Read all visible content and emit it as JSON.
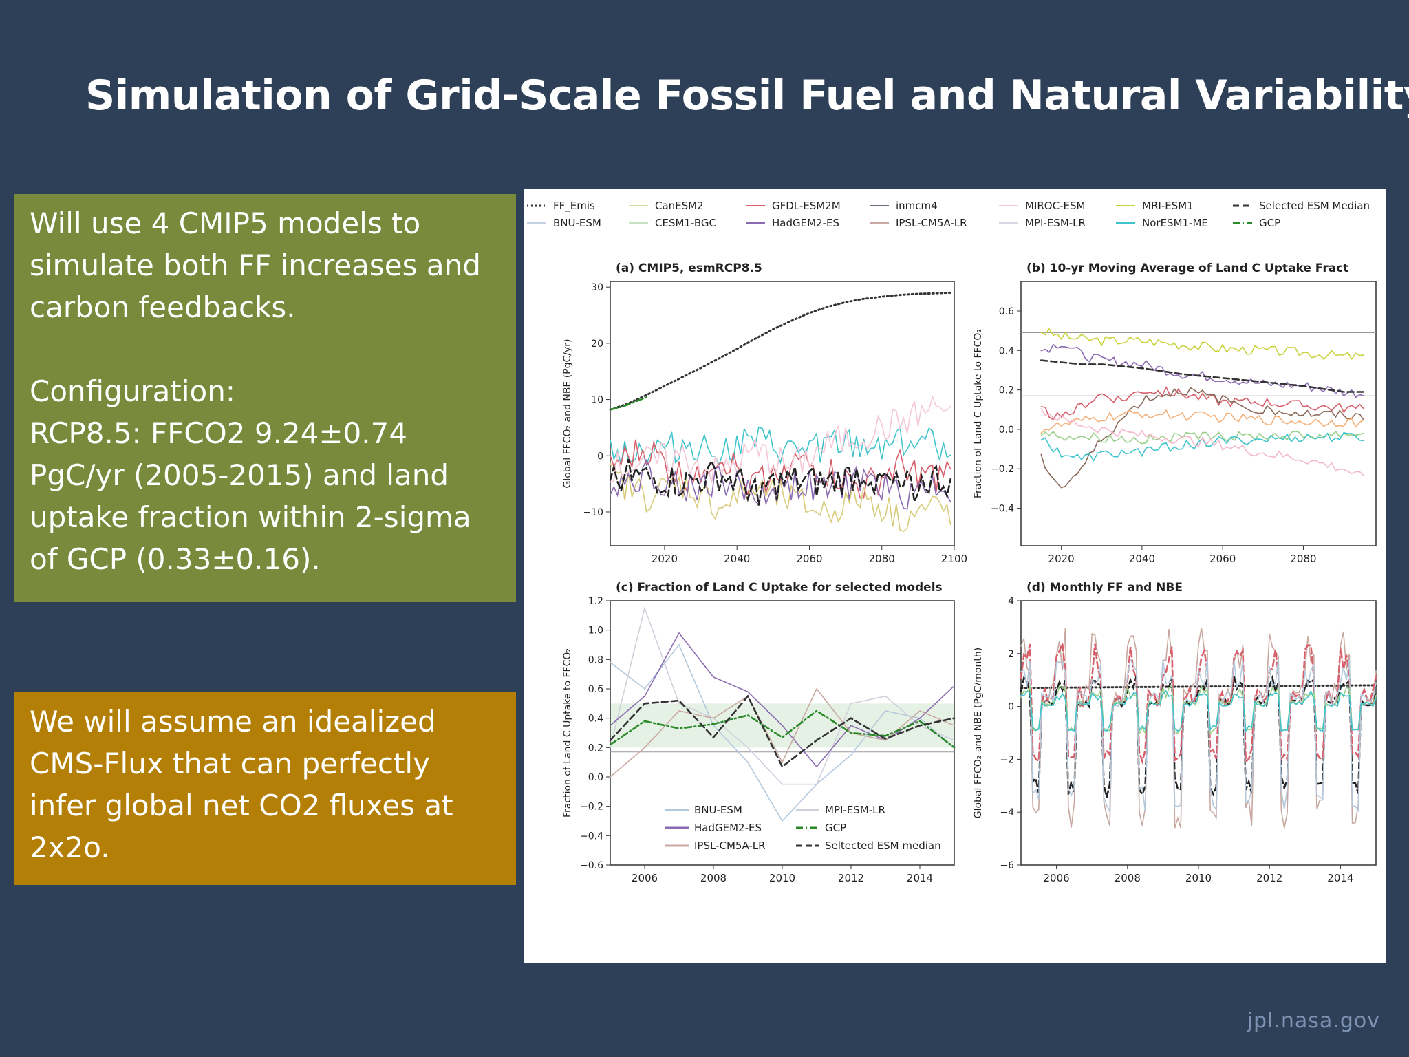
{
  "slide": {
    "title": "Simulation of Grid-Scale Fossil Fuel and Natural Variability",
    "footer": "jpl.nasa.gov"
  },
  "left_box_1": {
    "lines": [
      "Will use 4 CMIP5 models to",
      "simulate both FF increases and",
      "carbon feedbacks.",
      "Configuration:",
      "RCP8.5: FFCO2 9.24±0.74",
      "PgC/yr  (2005-2015) and land",
      "uptake fraction within 2-sigma",
      "of GCP (0.33±0.16)."
    ],
    "color": "#7a8a3c"
  },
  "left_box_2": {
    "lines": [
      "We will assume an idealized",
      "CMS-Flux that can perfectly",
      "infer global net CO2 fluxes at",
      "2x2o."
    ],
    "color": "#b47f06"
  },
  "top_legend": [
    {
      "label": "FF_Emis",
      "color": "#333333",
      "style": "dotted"
    },
    {
      "label": "CanESM2",
      "color": "#d4dca0",
      "style": "solid"
    },
    {
      "label": "GFDL-ESM2M",
      "color": "#d65f6a",
      "style": "solid"
    },
    {
      "label": "inmcm4",
      "color": "#6a6a7a",
      "style": "solid"
    },
    {
      "label": "MIROC-ESM",
      "color": "#f4c8d6",
      "style": "solid"
    },
    {
      "label": "MRI-ESM1",
      "color": "#c8d23c",
      "style": "solid"
    },
    {
      "label": "Selected ESM Median",
      "color": "#333333",
      "style": "dashed"
    },
    {
      "label": "BNU-ESM",
      "color": "#c2d2e4",
      "style": "solid"
    },
    {
      "label": "CESM1-BGC",
      "color": "#c8e0c4",
      "style": "solid"
    },
    {
      "label": "HadGEM2-ES",
      "color": "#8a6ab0",
      "style": "solid"
    },
    {
      "label": "IPSL-CM5A-LR",
      "color": "#c8a8a0",
      "style": "solid"
    },
    {
      "label": "MPI-ESM-LR",
      "color": "#d8d8e4",
      "style": "solid"
    },
    {
      "label": "NorESM1-ME",
      "color": "#40c4cc",
      "style": "solid"
    },
    {
      "label": "GCP",
      "color": "#2a8a2a",
      "style": "dashdot"
    }
  ],
  "chart_data": [
    {
      "id": "a",
      "type": "line",
      "title": "(a) CMIP5, esmRCP8.5",
      "xlabel": "",
      "ylabel": "Global FFCO₂ and NBE (PgC/yr)",
      "xlim": [
        2005,
        2100
      ],
      "ylim": [
        -16,
        31
      ],
      "xticks": [
        2020,
        2040,
        2060,
        2080,
        2100
      ],
      "yticks": [
        -10,
        0,
        10,
        20,
        30
      ],
      "series": [
        {
          "name": "FF_Emis",
          "color": "#333333",
          "style": "dotted",
          "x": [
            2005,
            2010,
            2015,
            2020,
            2025,
            2030,
            2035,
            2040,
            2045,
            2050,
            2055,
            2060,
            2065,
            2070,
            2075,
            2080,
            2085,
            2090,
            2095,
            2099
          ],
          "y": [
            8.2,
            9.3,
            10.8,
            12.4,
            14.0,
            15.6,
            17.3,
            19.0,
            20.8,
            22.5,
            24.0,
            25.4,
            26.5,
            27.3,
            27.9,
            28.3,
            28.6,
            28.8,
            28.9,
            29.0
          ]
        },
        {
          "name": "GCP",
          "color": "#2a8a2a",
          "style": "dashdot",
          "x": [
            2005,
            2007,
            2009,
            2011,
            2013,
            2015
          ],
          "y": [
            8.2,
            8.5,
            8.9,
            9.4,
            9.9,
            10.4
          ]
        },
        {
          "name": "NorESM1-ME",
          "color": "#40c4cc",
          "style": "solid",
          "x": [
            2005,
            2015,
            2025,
            2035,
            2045,
            2055,
            2065,
            2075,
            2085,
            2095,
            2099
          ],
          "y": [
            1.5,
            0.5,
            2.0,
            1.0,
            2.5,
            0.5,
            2.0,
            1.5,
            3.0,
            2.0,
            2.5
          ]
        },
        {
          "name": "GFDL-ESM2M",
          "color": "#d65f6a",
          "style": "solid",
          "x": [
            2005,
            2015,
            2025,
            2035,
            2045,
            2055,
            2065,
            2075,
            2085,
            2095,
            2099
          ],
          "y": [
            -2.0,
            1.0,
            -4.0,
            0.0,
            -5.0,
            -1.0,
            -3.0,
            -6.0,
            -2.0,
            -4.0,
            -3.0
          ]
        },
        {
          "name": "CanESM2",
          "color": "#d8cc7a",
          "style": "solid",
          "x": [
            2005,
            2015,
            2025,
            2035,
            2045,
            2055,
            2065,
            2075,
            2085,
            2095,
            2099
          ],
          "y": [
            -4.0,
            -7.0,
            -5.0,
            -9.0,
            -6.0,
            -8.0,
            -10.0,
            -7.0,
            -11.0,
            -9.0,
            -10.0
          ]
        },
        {
          "name": "MIROC-ESM",
          "color": "#f4c8d6",
          "style": "solid",
          "x": [
            2005,
            2015,
            2025,
            2035,
            2045,
            2055,
            2065,
            2075,
            2085,
            2095,
            2099
          ],
          "y": [
            -2.0,
            -1.0,
            0.0,
            -3.0,
            1.0,
            -2.0,
            2.0,
            4.0,
            6.0,
            9.0,
            8.0
          ]
        },
        {
          "name": "HadGEM2-ES",
          "color": "#8a6ab0",
          "style": "solid",
          "x": [
            2005,
            2015,
            2025,
            2035,
            2045,
            2055,
            2065,
            2075,
            2085,
            2095,
            2099
          ],
          "y": [
            -5.0,
            -3.0,
            -6.0,
            -4.0,
            -7.0,
            -5.0,
            -6.0,
            -4.0,
            -7.0,
            -5.0,
            -6.0
          ]
        },
        {
          "name": "Selected ESM Median",
          "color": "#222222",
          "style": "dashed",
          "x": [
            2005,
            2015,
            2025,
            2035,
            2045,
            2055,
            2065,
            2075,
            2085,
            2095,
            2099
          ],
          "y": [
            -3.0,
            -4.0,
            -5.0,
            -3.5,
            -6.0,
            -4.5,
            -5.0,
            -3.0,
            -6.0,
            -4.0,
            -5.0
          ]
        }
      ]
    },
    {
      "id": "b",
      "type": "line",
      "title": "(b) 10-yr Moving Average of Land C Uptake Fract",
      "xlabel": "",
      "ylabel": "Fraction of Land C Uptake to FFCO₂",
      "xlim": [
        2010,
        2098
      ],
      "ylim": [
        -0.59,
        0.75
      ],
      "xticks": [
        2020,
        2040,
        2060,
        2080
      ],
      "yticks": [
        -0.4,
        -0.2,
        0.0,
        0.2,
        0.4,
        0.6
      ],
      "hlines": [
        0.49,
        0.17
      ],
      "series": [
        {
          "name": "MRI-ESM1",
          "color": "#c8d23c",
          "style": "solid",
          "x": [
            2015,
            2020,
            2025,
            2030,
            2040,
            2050,
            2060,
            2070,
            2080,
            2090,
            2095
          ],
          "y": [
            0.5,
            0.47,
            0.46,
            0.45,
            0.45,
            0.43,
            0.41,
            0.4,
            0.39,
            0.37,
            0.37
          ]
        },
        {
          "name": "HadGEM2-ES",
          "color": "#8a6ab0",
          "style": "solid",
          "x": [
            2015,
            2020,
            2025,
            2030,
            2040,
            2050,
            2060,
            2070,
            2080,
            2090,
            2095
          ],
          "y": [
            0.4,
            0.44,
            0.38,
            0.35,
            0.33,
            0.28,
            0.26,
            0.23,
            0.22,
            0.19,
            0.18
          ]
        },
        {
          "name": "Selected ESM Median",
          "color": "#333333",
          "style": "dashed",
          "x": [
            2015,
            2020,
            2025,
            2030,
            2040,
            2050,
            2060,
            2070,
            2080,
            2090,
            2095
          ],
          "y": [
            0.35,
            0.34,
            0.33,
            0.33,
            0.31,
            0.28,
            0.26,
            0.24,
            0.22,
            0.19,
            0.19
          ]
        },
        {
          "name": "GFDL-ESM2M",
          "color": "#d65f6a",
          "style": "solid",
          "x": [
            2015,
            2020,
            2025,
            2030,
            2035,
            2040,
            2050,
            2060,
            2070,
            2080,
            2090,
            2095
          ],
          "y": [
            0.1,
            0.05,
            0.12,
            0.18,
            0.15,
            0.2,
            0.18,
            0.14,
            0.14,
            0.12,
            0.11,
            0.1
          ]
        },
        {
          "name": "IPSL-CM5A-LR",
          "color": "#8a6a5a",
          "style": "solid",
          "x": [
            2015,
            2020,
            2025,
            2030,
            2040,
            2050,
            2060,
            2070,
            2080,
            2090,
            2095
          ],
          "y": [
            -0.15,
            -0.3,
            -0.2,
            -0.05,
            0.15,
            0.2,
            0.15,
            0.1,
            0.08,
            0.07,
            0.06
          ]
        },
        {
          "name": "CanESM2",
          "color": "#f4b07a",
          "style": "solid",
          "x": [
            2015,
            2020,
            2030,
            2040,
            2050,
            2060,
            2070,
            2080,
            2090,
            2095
          ],
          "y": [
            0.0,
            0.02,
            0.06,
            0.08,
            0.07,
            0.06,
            0.05,
            0.04,
            0.04,
            0.03
          ]
        },
        {
          "name": "CESM1-BGC",
          "color": "#9ad08a",
          "style": "solid",
          "x": [
            2015,
            2020,
            2030,
            2040,
            2050,
            2060,
            2070,
            2080,
            2090,
            2095
          ],
          "y": [
            -0.02,
            -0.03,
            -0.04,
            -0.05,
            -0.04,
            -0.04,
            -0.03,
            -0.03,
            -0.02,
            -0.02
          ]
        },
        {
          "name": "NorESM1-ME",
          "color": "#40c4cc",
          "style": "solid",
          "x": [
            2015,
            2020,
            2025,
            2030,
            2040,
            2050,
            2060,
            2070,
            2080,
            2090,
            2095
          ],
          "y": [
            -0.05,
            -0.12,
            -0.15,
            -0.13,
            -0.11,
            -0.08,
            -0.06,
            -0.05,
            -0.04,
            -0.04,
            -0.04
          ]
        },
        {
          "name": "MIROC-ESM",
          "color": "#f4b8cc",
          "style": "solid",
          "x": [
            2015,
            2020,
            2030,
            2040,
            2050,
            2060,
            2070,
            2080,
            2090,
            2095
          ],
          "y": [
            0.1,
            0.05,
            0.0,
            -0.03,
            -0.05,
            -0.08,
            -0.12,
            -0.15,
            -0.2,
            -0.25
          ]
        }
      ]
    },
    {
      "id": "c",
      "type": "line",
      "title": "(c) Fraction of Land C Uptake for selected models",
      "xlabel": "",
      "ylabel": "Fraction of Land C Uptake to FFCO₂",
      "xlim": [
        2005,
        2015
      ],
      "ylim": [
        -0.6,
        1.2
      ],
      "xticks": [
        2006,
        2008,
        2010,
        2012,
        2014
      ],
      "yticks": [
        -0.6,
        -0.4,
        -0.2,
        0.0,
        0.2,
        0.4,
        0.6,
        0.8,
        1.0,
        1.2
      ],
      "hlines": [
        0.49,
        0.17
      ],
      "legend": [
        "BNU-ESM",
        "MPI-ESM-LR",
        "HadGEM2-ES",
        "GCP",
        "IPSL-CM5A-LR",
        "Seltected ESM median"
      ],
      "series": [
        {
          "name": "BNU-ESM",
          "color": "#b4c8dc",
          "style": "solid",
          "x": [
            2005,
            2006,
            2007,
            2008,
            2009,
            2010,
            2011,
            2012,
            2013,
            2014,
            2015
          ],
          "y": [
            0.78,
            0.6,
            0.9,
            0.35,
            0.1,
            -0.3,
            -0.05,
            0.15,
            0.45,
            0.4,
            0.2
          ]
        },
        {
          "name": "MPI-ESM-LR",
          "color": "#d0d0dc",
          "style": "solid",
          "x": [
            2005,
            2006,
            2007,
            2008,
            2009,
            2010,
            2011,
            2012,
            2013,
            2014,
            2015
          ],
          "y": [
            0.2,
            1.15,
            0.5,
            0.4,
            0.2,
            -0.05,
            -0.05,
            0.5,
            0.55,
            0.35,
            0.25
          ]
        },
        {
          "name": "HadGEM2-ES",
          "color": "#8a6ab0",
          "style": "solid",
          "x": [
            2005,
            2006,
            2007,
            2008,
            2009,
            2010,
            2011,
            2012,
            2013,
            2014,
            2015
          ],
          "y": [
            0.35,
            0.55,
            0.98,
            0.68,
            0.58,
            0.35,
            0.07,
            0.35,
            0.25,
            0.4,
            0.62
          ]
        },
        {
          "name": "IPSL-CM5A-LR",
          "color": "#c8a8a0",
          "style": "solid",
          "x": [
            2005,
            2006,
            2007,
            2008,
            2009,
            2010,
            2011,
            2012,
            2013,
            2014,
            2015
          ],
          "y": [
            0.0,
            0.2,
            0.45,
            0.4,
            0.55,
            0.1,
            0.6,
            0.3,
            0.25,
            0.45,
            0.35
          ]
        },
        {
          "name": "GCP",
          "color": "#2a8a2a",
          "style": "dashdot",
          "x": [
            2005,
            2006,
            2007,
            2008,
            2009,
            2010,
            2011,
            2012,
            2013,
            2014,
            2015
          ],
          "y": [
            0.22,
            0.38,
            0.33,
            0.36,
            0.42,
            0.27,
            0.45,
            0.3,
            0.28,
            0.38,
            0.2
          ]
        },
        {
          "name": "Seltected ESM median",
          "color": "#333333",
          "style": "dashed",
          "x": [
            2005,
            2006,
            2007,
            2008,
            2009,
            2010,
            2011,
            2012,
            2013,
            2014,
            2015
          ],
          "y": [
            0.25,
            0.5,
            0.52,
            0.27,
            0.55,
            0.07,
            0.25,
            0.4,
            0.26,
            0.35,
            0.4
          ]
        }
      ]
    },
    {
      "id": "d",
      "type": "line",
      "title": "(d) Monthly FF and NBE",
      "xlabel": "",
      "ylabel": "Global FFCO₂ and NBE (PgC/month)",
      "xlim": [
        2005,
        2015
      ],
      "ylim": [
        -6,
        4
      ],
      "xticks": [
        2006,
        2008,
        2010,
        2012,
        2014
      ],
      "yticks": [
        -6,
        -4,
        -2,
        0,
        2,
        4
      ],
      "series": [
        {
          "name": "FF_Emis",
          "color": "#333333",
          "style": "dotted",
          "x": [
            2005,
            2015
          ],
          "y": [
            0.7,
            0.8
          ]
        },
        {
          "name": "Selected ESM Median",
          "color": "#222222",
          "style": "dashed",
          "seasonal": true,
          "peak": 1.2,
          "trough": -3.3
        },
        {
          "name": "IPSL-CM5A-LR",
          "color": "#c8a8a0",
          "style": "solid",
          "seasonal": true,
          "peak": 3.0,
          "trough": -4.4
        },
        {
          "name": "GFDL-ESM2M",
          "color": "#d65f6a",
          "style": "dashed",
          "seasonal": true,
          "peak": 2.4,
          "trough": -2.0
        },
        {
          "name": "BNU-ESM",
          "color": "#b4c8dc",
          "style": "solid",
          "seasonal": true,
          "peak": 1.8,
          "trough": -3.8
        },
        {
          "name": "CESM1-BGC",
          "color": "#9ad08a",
          "style": "solid",
          "seasonal": true,
          "peak": 0.8,
          "trough": -1.0
        },
        {
          "name": "NorESM1-ME",
          "color": "#40c4cc",
          "style": "solid",
          "seasonal": true,
          "peak": 0.6,
          "trough": -0.9
        }
      ]
    }
  ]
}
